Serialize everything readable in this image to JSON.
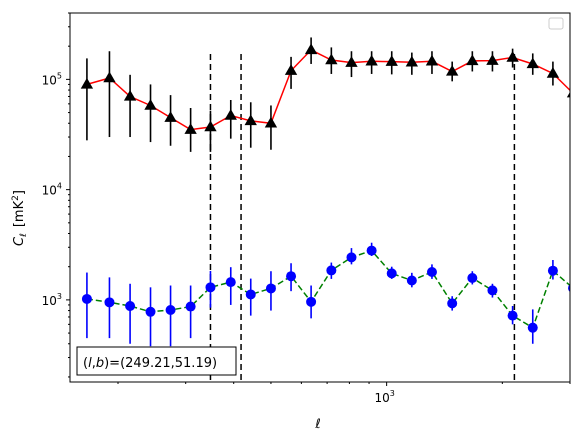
{
  "chart_data": {
    "type": "line",
    "xscale": "log",
    "yscale": "log",
    "xlabel": "ℓ",
    "ylabel_main": "C",
    "ylabel_sub": "ℓ",
    "ylabel_unit_pre": "[mK",
    "ylabel_unit_sup": "2",
    "ylabel_unit_post": "]",
    "xlim": [
      150,
      3000
    ],
    "ylim": [
      180,
      400000
    ],
    "x_tick_labels": [
      {
        "value": 1000,
        "base": "10",
        "exp": "3"
      }
    ],
    "y_tick_labels": [
      {
        "value": 1000,
        "base": "10",
        "exp": "3"
      },
      {
        "value": 10000,
        "base": "10",
        "exp": "4"
      },
      {
        "value": 100000,
        "base": "10",
        "exp": "5"
      }
    ],
    "grid": false,
    "legend": "top-right (empty)",
    "annotation": {
      "text_pre": "(",
      "l": "l",
      "comma": ",",
      "b": "b",
      "text_post": ")=(249.21,51.19)",
      "position": "bottom-left"
    },
    "vlines": [
      348,
      418,
      2150
    ],
    "series": [
      {
        "marker": "triangle",
        "color": "#000000",
        "line_color": "#ff0000",
        "line_style": "solid",
        "errorbar_color": "#000000",
        "x": [
          166,
          190,
          215,
          243,
          274,
          309,
          348,
          393,
          443,
          500,
          564,
          636,
          718,
          810,
          914,
          1031,
          1163,
          1312,
          1481,
          1671,
          1885,
          2127,
          2400,
          2708,
          3055
        ],
        "y": [
          90000,
          103000,
          70000,
          58000,
          45000,
          35000,
          37000,
          47000,
          42000,
          40000,
          120000,
          185000,
          150000,
          142000,
          146000,
          145000,
          143000,
          146000,
          118000,
          147000,
          148000,
          158000,
          138000,
          113000,
          75000
        ],
        "yerr_low": [
          28000,
          30000,
          30000,
          27000,
          25000,
          22000,
          22000,
          29000,
          24000,
          23000,
          82000,
          138000,
          112000,
          105000,
          112000,
          111000,
          110000,
          112000,
          96000,
          118000,
          118000,
          128000,
          110000,
          88000,
          60000
        ],
        "yerr_high": [
          155000,
          180000,
          110000,
          90000,
          72000,
          55000,
          52000,
          65000,
          62000,
          58000,
          160000,
          240000,
          195000,
          180000,
          180000,
          180000,
          175000,
          180000,
          145000,
          180000,
          180000,
          190000,
          172000,
          145000,
          92000
        ]
      },
      {
        "marker": "circle",
        "color": "#0000ff",
        "line_color": "#008000",
        "line_style": "dashed",
        "errorbar_color": "#0000ff",
        "x": [
          166,
          190,
          215,
          243,
          274,
          309,
          348,
          393,
          443,
          500,
          564,
          636,
          718,
          810,
          914,
          1031,
          1163,
          1312,
          1481,
          1671,
          1885,
          2127,
          2400,
          2708,
          3055
        ],
        "y": [
          1020,
          950,
          880,
          780,
          810,
          870,
          1300,
          1450,
          1120,
          1270,
          1640,
          960,
          1850,
          2430,
          2800,
          1740,
          1500,
          1790,
          930,
          1580,
          1220,
          720,
          560,
          1840,
          1280
        ],
        "yerr_low": [
          450,
          450,
          400,
          380,
          380,
          450,
          850,
          900,
          720,
          800,
          1200,
          680,
          1550,
          2100,
          2500,
          1550,
          1300,
          1550,
          800,
          1380,
          1050,
          600,
          400,
          1530,
          780
        ],
        "yerr_high": [
          1770,
          1600,
          1400,
          1300,
          1350,
          1350,
          1830,
          1980,
          1560,
          1820,
          2150,
          1350,
          2180,
          2950,
          3300,
          2000,
          1760,
          2100,
          1080,
          1820,
          1400,
          880,
          820,
          2300,
          1920
        ]
      }
    ]
  }
}
